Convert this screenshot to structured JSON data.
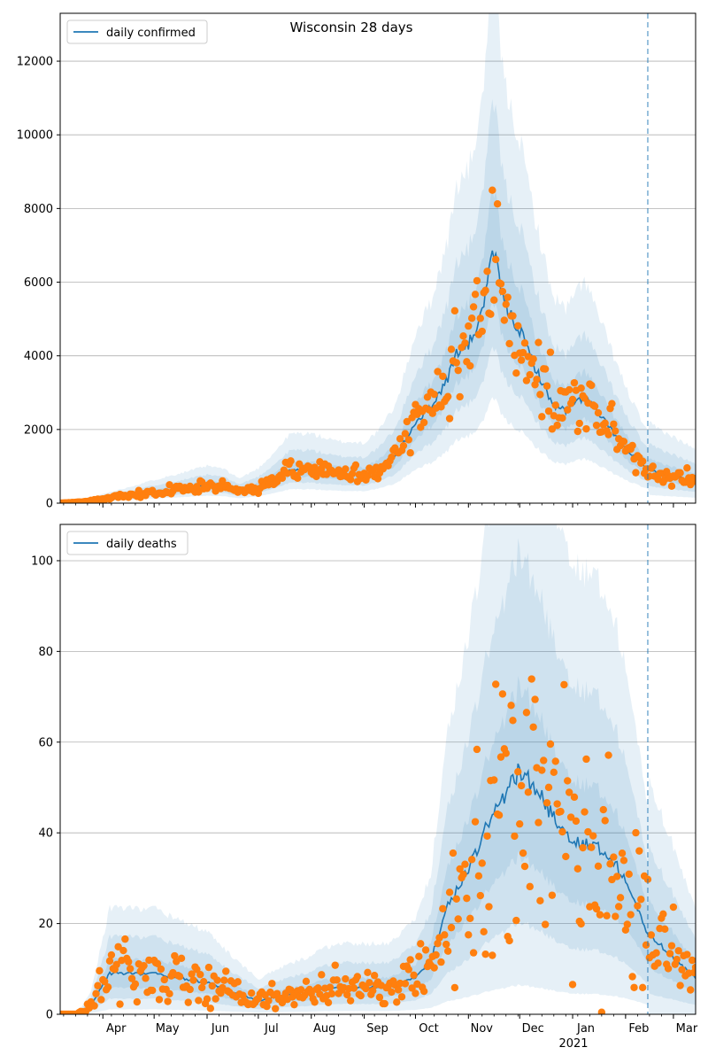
{
  "figure": {
    "suptitle": "Wisconsin 28 days"
  },
  "colors": {
    "model": "#1f77b4",
    "observed": "#ff7f0e",
    "band": "#1f77b4",
    "grid": "#b0b0b0",
    "forecast_line": "#1f77b4"
  },
  "chart_data": [
    {
      "type": "line",
      "legend": {
        "label": "daily confirmed",
        "position": "upper-left"
      },
      "x_start": "2020-03-07",
      "x_end": "2021-03-14",
      "ylim": [
        0,
        13300
      ],
      "yticks": [
        0,
        2000,
        4000,
        6000,
        8000,
        10000,
        12000
      ],
      "grid": "y",
      "forecast_start": "2021-02-14",
      "median_knots": [
        [
          "2020-03-07",
          0
        ],
        [
          "2020-03-20",
          30
        ],
        [
          "2020-04-01",
          120
        ],
        [
          "2020-04-15",
          200
        ],
        [
          "2020-05-01",
          300
        ],
        [
          "2020-05-15",
          380
        ],
        [
          "2020-06-01",
          480
        ],
        [
          "2020-06-10",
          450
        ],
        [
          "2020-06-20",
          320
        ],
        [
          "2020-07-01",
          450
        ],
        [
          "2020-07-10",
          650
        ],
        [
          "2020-07-20",
          900
        ],
        [
          "2020-08-01",
          900
        ],
        [
          "2020-08-15",
          800
        ],
        [
          "2020-09-01",
          780
        ],
        [
          "2020-09-10",
          950
        ],
        [
          "2020-09-20",
          1300
        ],
        [
          "2020-10-01",
          2200
        ],
        [
          "2020-10-10",
          2600
        ],
        [
          "2020-10-20",
          3400
        ],
        [
          "2020-10-25",
          4100
        ],
        [
          "2020-11-01",
          4300
        ],
        [
          "2020-11-08",
          5000
        ],
        [
          "2020-11-12",
          6000
        ],
        [
          "2020-11-16",
          6800
        ],
        [
          "2020-11-22",
          5400
        ],
        [
          "2020-12-01",
          4700
        ],
        [
          "2020-12-10",
          3700
        ],
        [
          "2020-12-20",
          2700
        ],
        [
          "2020-12-28",
          2500
        ],
        [
          "2021-01-08",
          2900
        ],
        [
          "2021-01-20",
          2200
        ],
        [
          "2021-02-01",
          1500
        ],
        [
          "2021-02-14",
          900
        ],
        [
          "2021-03-14",
          600
        ]
      ],
      "band_widths": [
        [
          1.25,
          0.8
        ],
        [
          1.6,
          0.62
        ],
        [
          2.1,
          0.42
        ]
      ],
      "forecast_widen": 1.3,
      "observed_noise": 0.2,
      "observed_seed": 11
    },
    {
      "type": "line",
      "legend": {
        "label": "daily deaths",
        "position": "upper-left"
      },
      "x_start": "2020-03-07",
      "x_end": "2021-03-14",
      "ylim": [
        0,
        108
      ],
      "yticks": [
        0,
        20,
        40,
        60,
        80,
        100
      ],
      "grid": "y",
      "forecast_start": "2021-02-14",
      "xticks": [
        "Apr",
        "May",
        "Jun",
        "Jul",
        "Aug",
        "Sep",
        "Oct",
        "Nov",
        "Dec",
        "Jan",
        "Feb",
        "Mar"
      ],
      "xtick_dates": [
        "2020-04-01",
        "2020-05-01",
        "2020-06-01",
        "2020-07-01",
        "2020-08-01",
        "2020-09-01",
        "2020-10-01",
        "2020-11-01",
        "2020-12-01",
        "2021-01-01",
        "2021-02-01",
        "2021-03-01"
      ],
      "year_label": "2021",
      "median_knots": [
        [
          "2020-03-07",
          0
        ],
        [
          "2020-03-17",
          0
        ],
        [
          "2020-03-25",
          2
        ],
        [
          "2020-04-05",
          9
        ],
        [
          "2020-04-20",
          9
        ],
        [
          "2020-05-01",
          9
        ],
        [
          "2020-05-15",
          8
        ],
        [
          "2020-06-01",
          7
        ],
        [
          "2020-06-15",
          5
        ],
        [
          "2020-07-01",
          3
        ],
        [
          "2020-07-15",
          4
        ],
        [
          "2020-08-01",
          5
        ],
        [
          "2020-08-15",
          6
        ],
        [
          "2020-09-01",
          6
        ],
        [
          "2020-09-15",
          6
        ],
        [
          "2020-10-01",
          8
        ],
        [
          "2020-10-10",
          12
        ],
        [
          "2020-10-20",
          24
        ],
        [
          "2020-11-01",
          32
        ],
        [
          "2020-11-10",
          40
        ],
        [
          "2020-11-20",
          47
        ],
        [
          "2020-12-01",
          54
        ],
        [
          "2020-12-10",
          50
        ],
        [
          "2020-12-20",
          44
        ],
        [
          "2021-01-01",
          38
        ],
        [
          "2021-01-15",
          37
        ],
        [
          "2021-01-25",
          34
        ],
        [
          "2021-02-05",
          26
        ],
        [
          "2021-02-14",
          18
        ],
        [
          "2021-03-14",
          8
        ]
      ],
      "band_widths": [
        [
          1.35,
          0.65
        ],
        [
          1.9,
          0.38
        ],
        [
          2.6,
          0.12
        ]
      ],
      "forecast_widen": 1.2,
      "observed_noise": 0.45,
      "observed_seed": 5
    }
  ]
}
